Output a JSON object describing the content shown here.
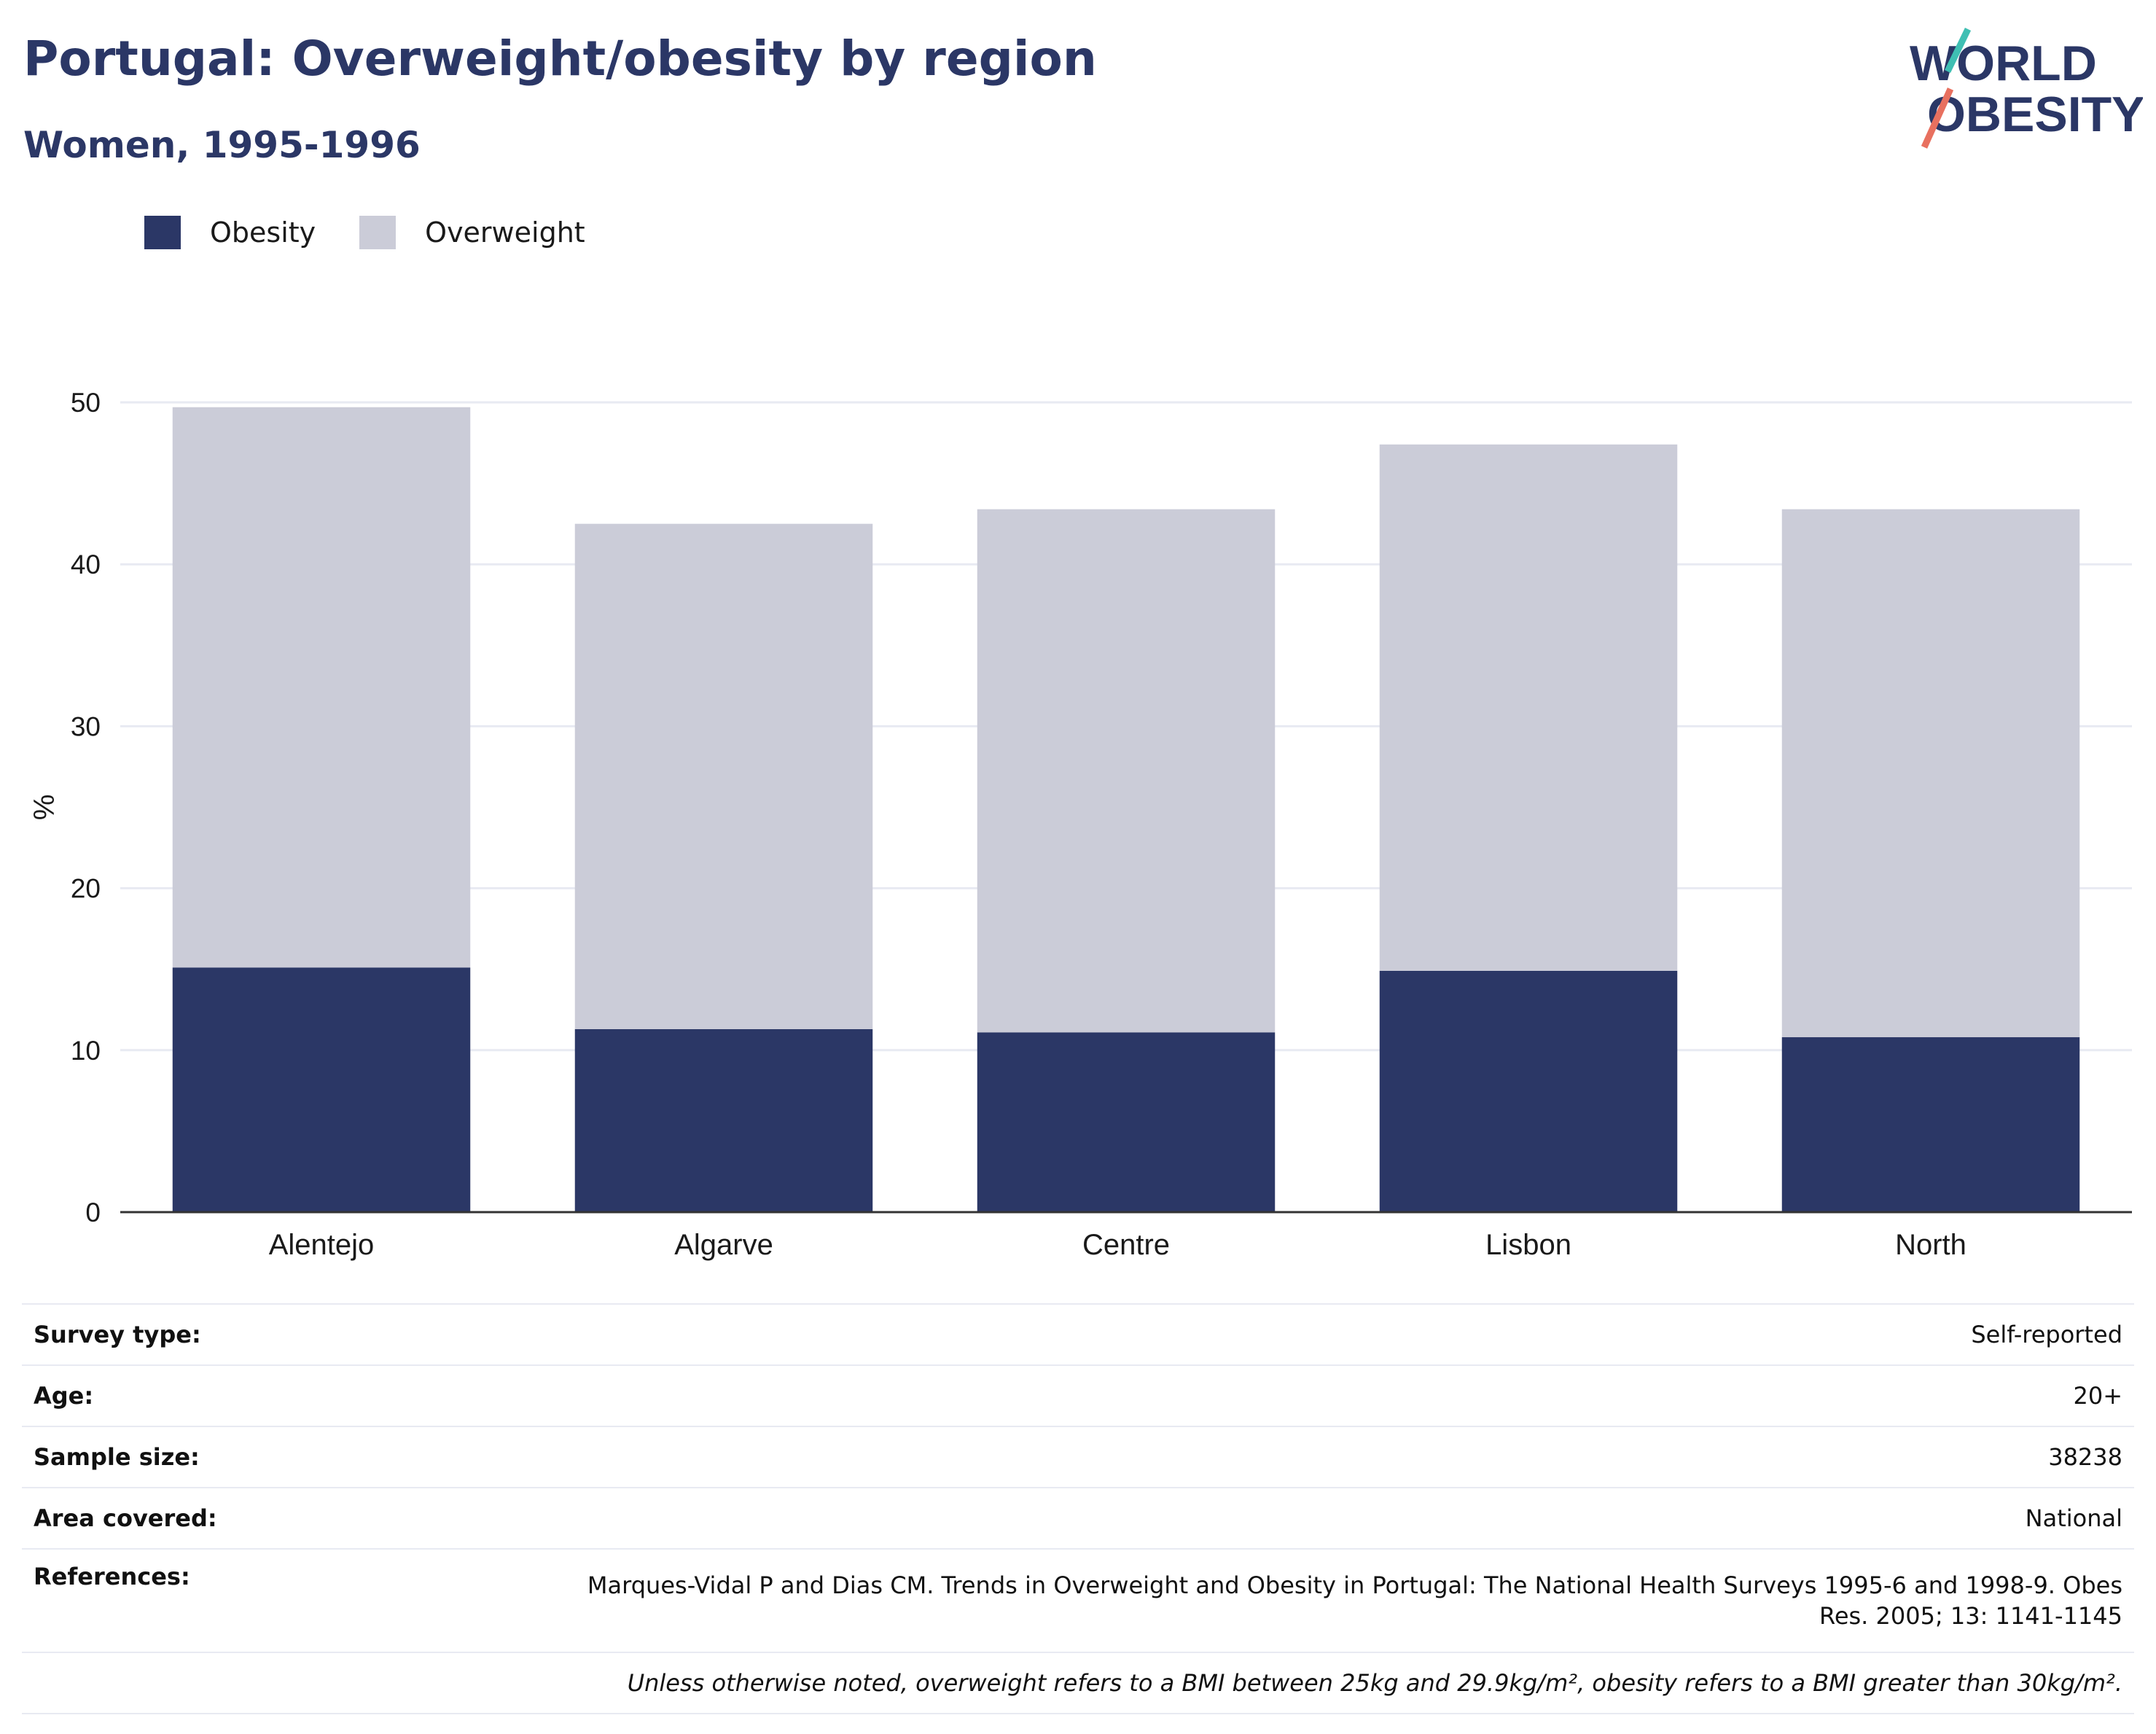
{
  "header": {
    "title": "Portugal: Overweight/obesity by region",
    "subtitle": "Women, 1995-1996"
  },
  "logo": {
    "line1": "WORLD",
    "line2": "OBESITY",
    "name": "world-obesity-logo"
  },
  "colors": {
    "obesity": "#2b3766",
    "overweight": "#cbccd8",
    "grid": "#e8eaf2",
    "axis": "#333333"
  },
  "legend": [
    {
      "label": "Obesity",
      "color": "#2b3766"
    },
    {
      "label": "Overweight",
      "color": "#cbccd8"
    }
  ],
  "chart_data": {
    "type": "bar",
    "stacked": true,
    "categories": [
      "Alentejo",
      "Algarve",
      "Centre",
      "Lisbon",
      "North"
    ],
    "series": [
      {
        "name": "Obesity",
        "values": [
          15.1,
          11.3,
          11.1,
          14.9,
          10.8
        ]
      },
      {
        "name": "Overweight",
        "values": [
          34.6,
          31.2,
          32.3,
          32.5,
          32.6
        ]
      }
    ],
    "ylabel": "%",
    "xlabel": "",
    "ylim": [
      0,
      50
    ],
    "yticks": [
      0,
      10,
      20,
      30,
      40,
      50
    ],
    "grid": true,
    "legend_position": "top-left"
  },
  "info": {
    "survey_type": {
      "label": "Survey type:",
      "value": "Self-reported"
    },
    "age": {
      "label": "Age:",
      "value": "20+"
    },
    "sample_size": {
      "label": "Sample size:",
      "value": "38238"
    },
    "area": {
      "label": "Area covered:",
      "value": "National"
    },
    "references": {
      "label": "References:",
      "line1": "Marques-Vidal P and Dias CM. Trends in Overweight and Obesity in Portugal: The National Health Surveys 1995-6 and 1998-9. Obes",
      "line2": "Res. 2005; 13: 1141-1145"
    },
    "note": "Unless otherwise noted, overweight refers to a BMI between 25kg and 29.9kg/m², obesity refers to a BMI greater than 30kg/m²."
  }
}
